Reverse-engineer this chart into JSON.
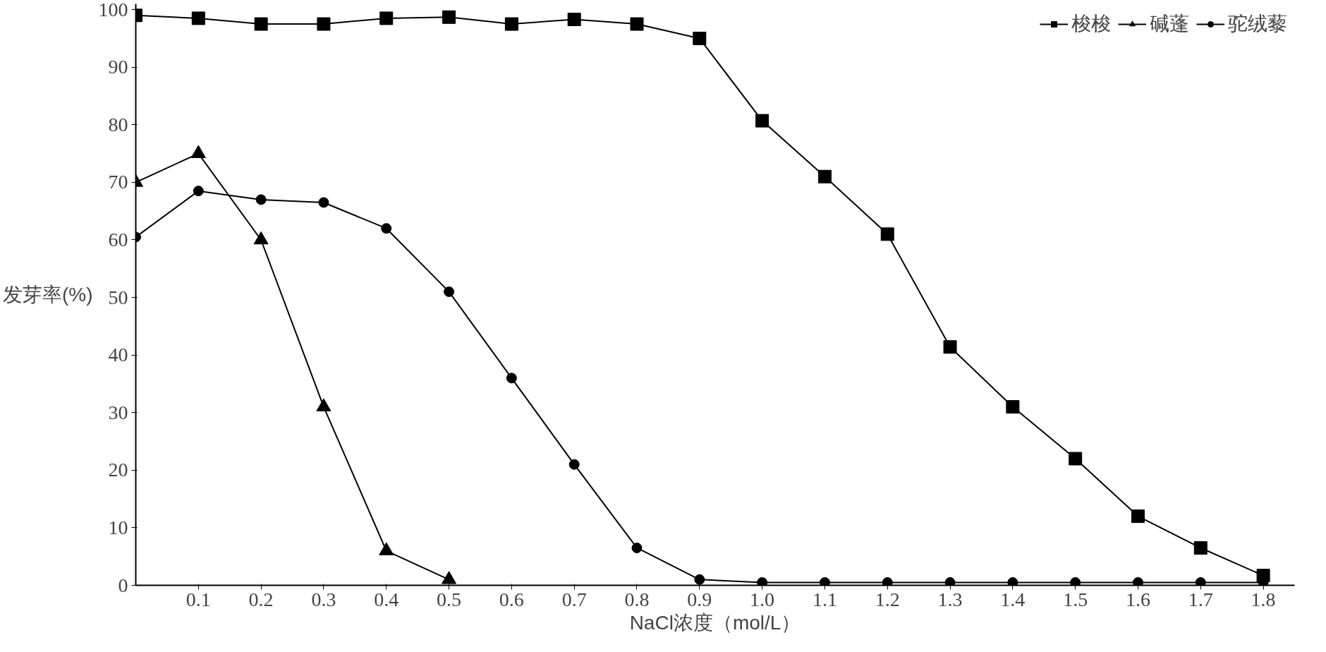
{
  "chart_data": {
    "type": "line",
    "xlabel": "NaCl浓度（mol/L）",
    "ylabel": "发芽率(%)",
    "x": [
      0,
      0.1,
      0.2,
      0.3,
      0.4,
      0.5,
      0.6,
      0.7,
      0.8,
      0.9,
      1.0,
      1.1,
      1.2,
      1.3,
      1.4,
      1.5,
      1.6,
      1.7,
      1.8
    ],
    "series": [
      {
        "name": "梭梭",
        "color": "#000000",
        "marker": "square",
        "values": [
          99,
          98.5,
          97.5,
          97.5,
          98.5,
          98.7,
          97.5,
          98.3,
          97.5,
          95,
          80.7,
          71,
          61,
          41.4,
          31,
          22,
          12,
          6.5,
          1.7
        ]
      },
      {
        "name": "碱蓬",
        "color": "#000000",
        "marker": "triangle",
        "values": [
          70,
          75,
          60,
          31,
          6,
          1,
          null,
          null,
          null,
          null,
          null,
          null,
          null,
          null,
          null,
          null,
          null,
          null,
          null
        ]
      },
      {
        "name": "驼绒藜",
        "color": "#000000",
        "marker": "circle",
        "values": [
          60.5,
          68.5,
          67,
          66.5,
          62,
          51,
          36,
          21,
          6.5,
          1,
          0.5,
          0.5,
          0.5,
          0.5,
          0.5,
          0.5,
          0.5,
          0.5,
          0.5
        ]
      }
    ],
    "xlim": [
      0,
      1.85
    ],
    "ylim": [
      0,
      101
    ],
    "xticks": [
      0.1,
      0.2,
      0.3,
      0.4,
      0.5,
      0.6,
      0.7,
      0.8,
      0.9,
      {
        "value": 1.0,
        "label": "1.0"
      },
      1.1,
      1.2,
      1.3,
      1.4,
      1.5,
      1.6,
      1.7,
      1.8
    ],
    "yticks": [
      0,
      10,
      20,
      30,
      40,
      50,
      60,
      70,
      80,
      90,
      100
    ],
    "grid": false,
    "legend": "top right",
    "line_style": "solid"
  }
}
